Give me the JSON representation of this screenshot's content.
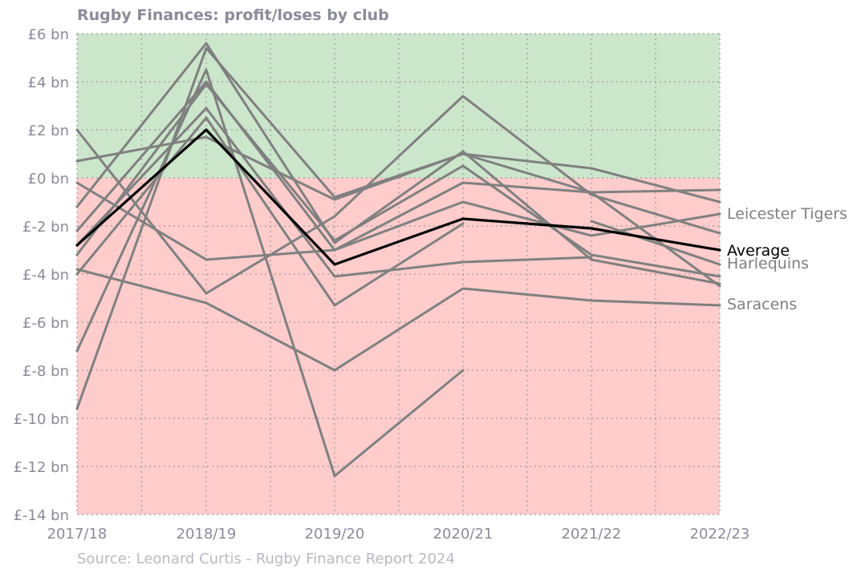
{
  "chart_data": {
    "type": "line",
    "title": "Rugby Finances: profit/loses by club",
    "source": "Source: Leonard Curtis - Rugby Finance Report 2024",
    "xlabel": "",
    "ylabel": "",
    "x": [
      "2017/18",
      "2018/19",
      "2019/20",
      "2020/21",
      "2021/22",
      "2022/23"
    ],
    "ylim": [
      -14,
      6
    ],
    "yticks": [
      6,
      4,
      2,
      0,
      -2,
      -4,
      -6,
      -8,
      -10,
      -12,
      -14
    ],
    "ytick_labels": [
      "£6 bn",
      "£4 bn",
      "£2 bn",
      "£0 bn",
      "£-2 bn",
      "£-4 bn",
      "£-6 bn",
      "£-8 bn",
      "£-10 bn",
      "£-12 bn",
      "£-14 bn"
    ],
    "zones": [
      {
        "from": 0,
        "to": 6,
        "color": "#cce6cc"
      },
      {
        "from": -14,
        "to": 0,
        "color": "#ffcccc"
      }
    ],
    "grid": true,
    "club_color": "#808080",
    "average_color": "#000000",
    "label_color": "#808080",
    "series": [
      {
        "name": "Leicester Tigers",
        "values": [
          -2.2,
          4.0,
          -3.0,
          -1.0,
          -2.4,
          -1.5
        ]
      },
      {
        "name": "Harlequins",
        "values": [
          -4.0,
          2.5,
          -5.3,
          -1.9,
          null,
          null
        ]
      },
      {
        "name": "Harlequins",
        "values": [
          null,
          null,
          null,
          null,
          -1.8,
          -3.6
        ]
      },
      {
        "name": "Saracens",
        "values": [
          -3.8,
          -5.2,
          -8.0,
          -4.6,
          -5.1,
          -5.3
        ]
      },
      {
        "values": [
          0.7,
          1.7,
          -0.9,
          1.0,
          0.4,
          -1.0
        ]
      },
      {
        "values": [
          -9.6,
          5.4,
          -0.8,
          1.0,
          -0.6,
          -0.5
        ]
      },
      {
        "values": [
          -7.2,
          4.5,
          -12.4,
          -8.0,
          null,
          null
        ]
      },
      {
        "values": [
          2.0,
          -4.8,
          -1.6,
          3.4,
          -0.7,
          -2.3
        ]
      },
      {
        "values": [
          -1.2,
          5.6,
          -2.7,
          1.1,
          -3.4,
          -4.4
        ]
      },
      {
        "values": [
          -3.2,
          3.9,
          -2.6,
          0.5,
          -3.2,
          -4.1
        ]
      },
      {
        "values": [
          -0.2,
          -3.4,
          -3.0,
          -0.2,
          -0.6,
          -4.5
        ]
      },
      {
        "values": [
          -2.8,
          2.9,
          -4.1,
          -3.5,
          -3.3,
          null
        ]
      }
    ],
    "average": {
      "name": "Average",
      "values": [
        -2.8,
        2.0,
        -3.6,
        -1.7,
        -2.1,
        -3.0
      ]
    },
    "end_labels": [
      {
        "text": "Leicester Tigers",
        "value": -1.5,
        "color": "#808080"
      },
      {
        "text": "Average",
        "value": -3.0,
        "color": "#000000"
      },
      {
        "text": "Harlequins",
        "value": -3.6,
        "color": "#808080"
      },
      {
        "text": "Saracens",
        "value": -5.3,
        "color": "#808080"
      }
    ]
  }
}
